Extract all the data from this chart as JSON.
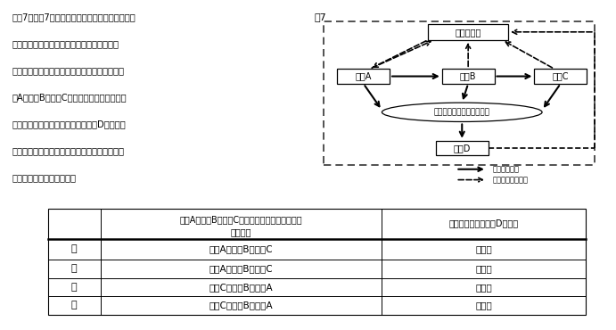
{
  "title_text": "図7",
  "question_lines": [
    "［問7］　図7は，生態系における炭素の循環を表",
    "したものである。生態系において生物の数量",
    "（生物量）のつり合いのとれた状態のとき，生",
    "物A，生物B，生物Cの生物の数量（生物量）",
    "の大小関係と，生態系における生物Dの名称を",
    "組み合わせたものとして適切なのは，次の表の",
    "ア～エのうちではどれか。"
  ],
  "node_co2": "二酸化炭素",
  "node_bioA": "生物A",
  "node_bioB": "生物B",
  "node_bioC": "生物C",
  "node_death": "生物の死がいや排出物など",
  "node_bioD": "生物D",
  "legend_solid": "有機物の流れ",
  "legend_dashed": "二酸化炭素の流れ",
  "table_header_col1_line1": "生物A，生物B，生物Cの生物の数量（生物量）の",
  "table_header_col1_line2": "大小関係",
  "table_header_col2": "生態系における生物Dの名称",
  "table_rows": [
    [
      "ア",
      "生物A＞生物B＞生物C",
      "生産者"
    ],
    [
      "イ",
      "生物A＞生物B＞生物C",
      "分解者"
    ],
    [
      "ウ",
      "生物C＞生物B＞生物A",
      "生産者"
    ],
    [
      "エ",
      "生物C＞生物B＞生物A",
      "分解者"
    ]
  ]
}
